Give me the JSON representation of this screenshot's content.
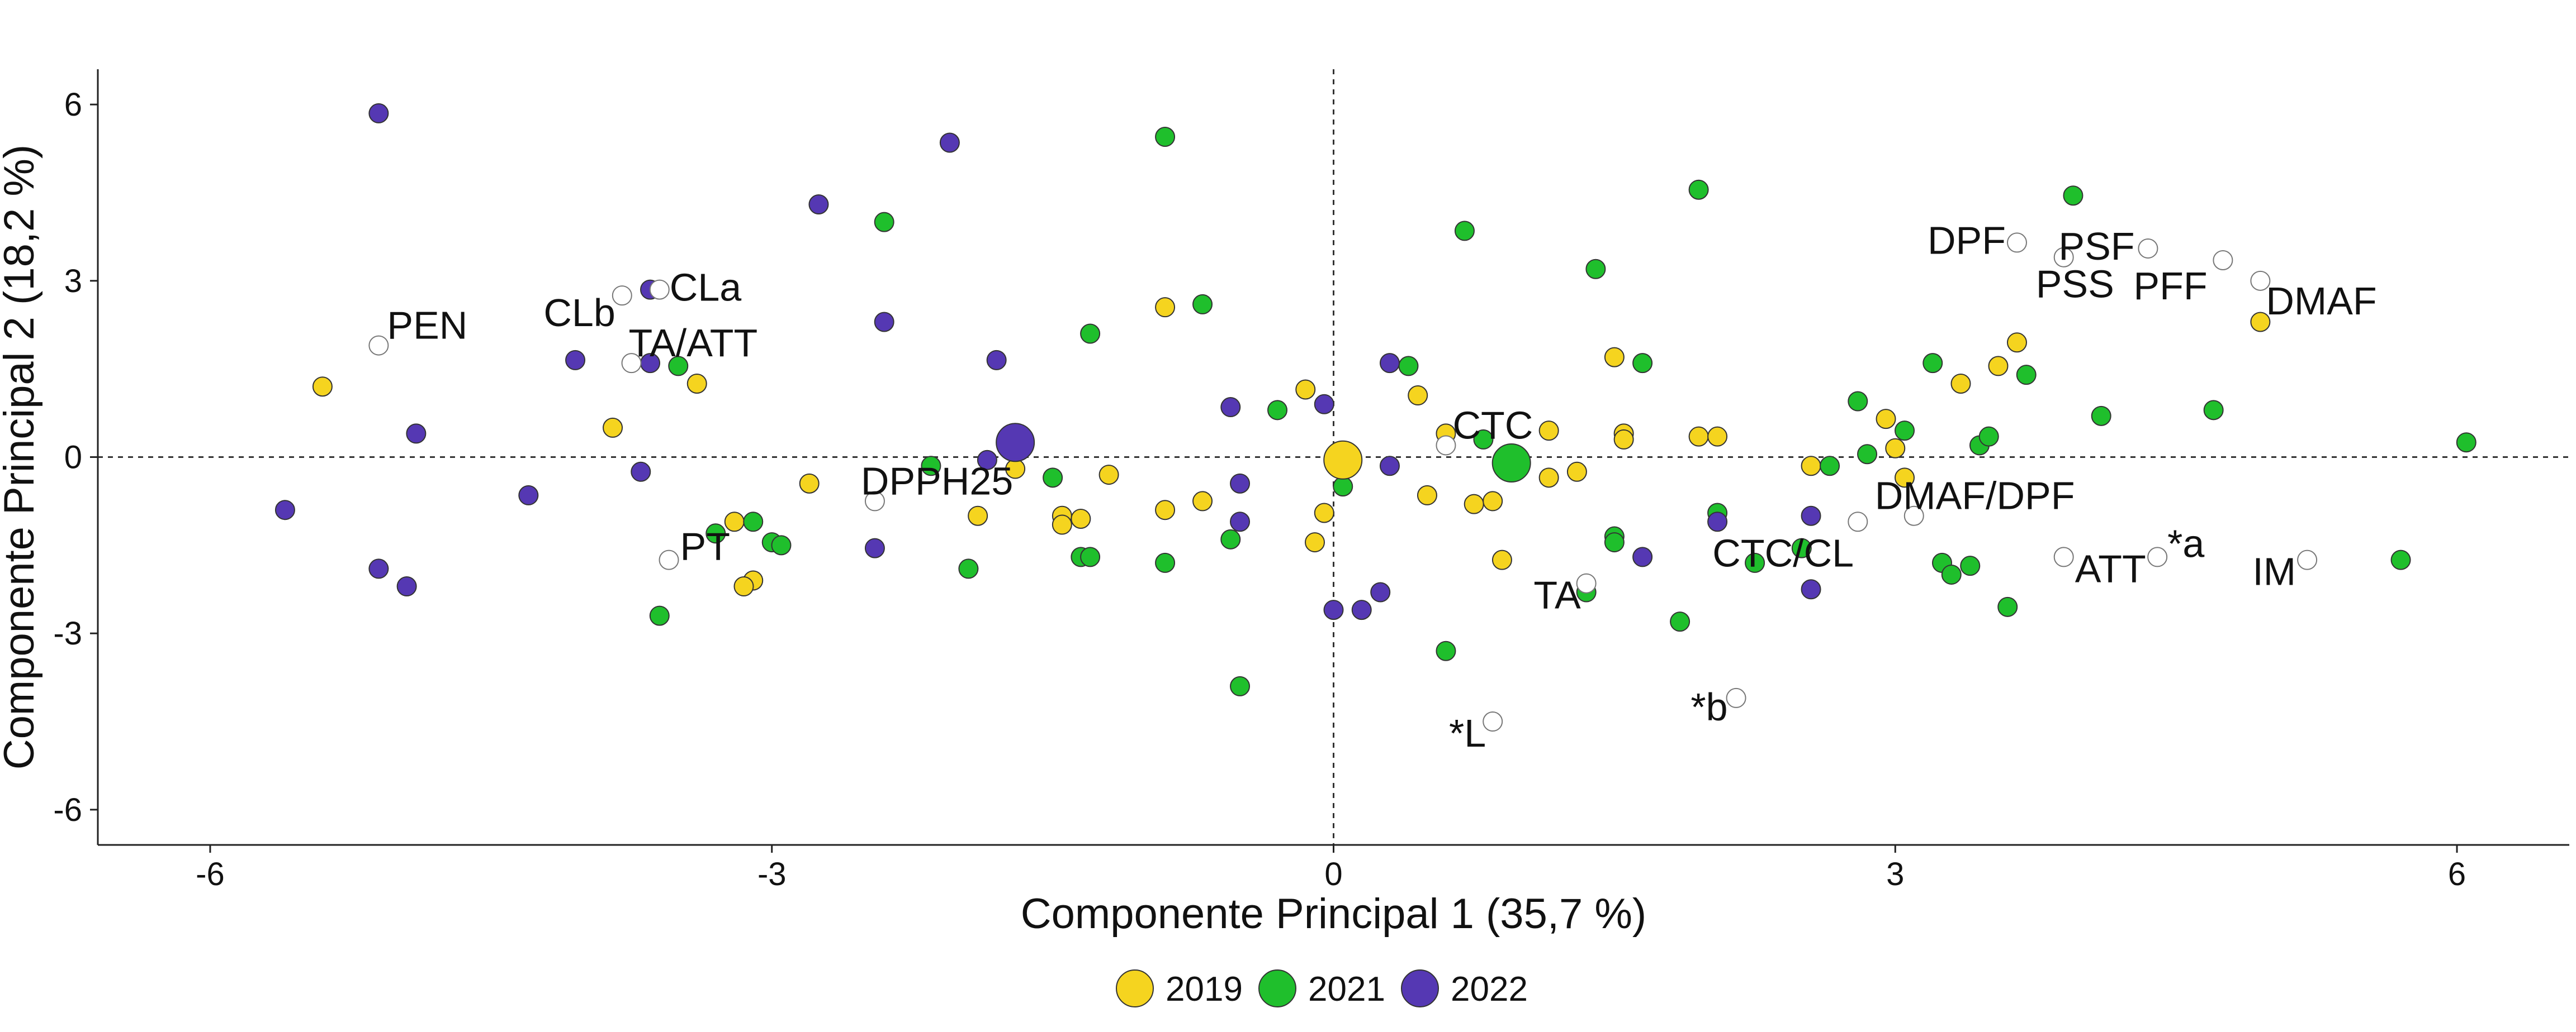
{
  "chart_data": {
    "type": "scatter",
    "title": "",
    "xlabel": "Componente Principal 1 (35,7 %)",
    "ylabel": "Componente Principal 2 (18,2 %)",
    "xlim": [
      -6.6,
      6.6
    ],
    "ylim": [
      -6.6,
      6.6
    ],
    "x_ticks": [
      -6,
      -3,
      0,
      3,
      6
    ],
    "y_ticks": [
      6,
      3,
      0,
      -3,
      -6
    ],
    "x_tick_labels": [
      "-6",
      "-3",
      "0",
      "3",
      "6"
    ],
    "y_tick_labels": [
      "6",
      "3",
      "0",
      "-3",
      "-6"
    ],
    "grid": false,
    "reference_lines": {
      "x": 0,
      "y": 0,
      "style": "dashed"
    },
    "legend_position": "bottom",
    "legend": [
      {
        "label": "2019",
        "color": "#f5d41f"
      },
      {
        "label": "2021",
        "color": "#1fbf2c"
      },
      {
        "label": "2022",
        "color": "#5538b3"
      }
    ],
    "series": [
      {
        "name": "2019",
        "color": "#f5d41f",
        "points": [
          [
            -5.4,
            1.2
          ],
          [
            -3.85,
            0.5
          ],
          [
            -3.4,
            1.25
          ],
          [
            -2.8,
            -0.45
          ],
          [
            -3.2,
            -1.1
          ],
          [
            -3.1,
            -2.1
          ],
          [
            -3.15,
            -2.2
          ],
          [
            -1.9,
            -1.0
          ],
          [
            -1.7,
            -0.2
          ],
          [
            -1.45,
            -1.0
          ],
          [
            -1.45,
            -1.15
          ],
          [
            -1.35,
            -1.05
          ],
          [
            -1.2,
            -0.3
          ],
          [
            -0.9,
            -0.9
          ],
          [
            -0.7,
            -0.75
          ],
          [
            -0.9,
            2.55
          ],
          [
            -0.15,
            1.15
          ],
          [
            -0.05,
            -0.95
          ],
          [
            -0.1,
            -1.45
          ],
          [
            0.45,
            1.05
          ],
          [
            0.6,
            0.4
          ],
          [
            0.5,
            -0.65
          ],
          [
            0.75,
            -0.8
          ],
          [
            0.85,
            -0.75
          ],
          [
            0.9,
            -1.75
          ],
          [
            1.15,
            0.45
          ],
          [
            1.15,
            -0.35
          ],
          [
            1.3,
            -0.25
          ],
          [
            1.5,
            1.7
          ],
          [
            1.55,
            0.4
          ],
          [
            1.55,
            0.3
          ],
          [
            1.95,
            0.35
          ],
          [
            2.05,
            0.35
          ],
          [
            2.55,
            -0.15
          ],
          [
            2.95,
            0.65
          ],
          [
            3.0,
            0.15
          ],
          [
            3.05,
            -0.35
          ],
          [
            3.35,
            1.25
          ],
          [
            3.55,
            1.55
          ],
          [
            3.65,
            1.95
          ],
          [
            4.95,
            2.3
          ]
        ],
        "centroid": [
          0.05,
          -0.05
        ]
      },
      {
        "name": "2021",
        "color": "#1fbf2c",
        "points": [
          [
            -3.5,
            1.55
          ],
          [
            -3.3,
            -1.3
          ],
          [
            -3.1,
            -1.1
          ],
          [
            -3.0,
            -1.45
          ],
          [
            -2.95,
            -1.5
          ],
          [
            -3.6,
            -2.7
          ],
          [
            -2.4,
            4.0
          ],
          [
            -2.15,
            -0.15
          ],
          [
            -1.95,
            -1.9
          ],
          [
            -1.5,
            -0.35
          ],
          [
            -1.35,
            -1.7
          ],
          [
            -1.3,
            -1.7
          ],
          [
            -1.3,
            2.1
          ],
          [
            -0.9,
            5.45
          ],
          [
            -0.9,
            -1.8
          ],
          [
            -0.7,
            2.6
          ],
          [
            -0.3,
            0.8
          ],
          [
            -0.55,
            -1.4
          ],
          [
            -0.5,
            -3.9
          ],
          [
            0.05,
            -0.5
          ],
          [
            0.4,
            1.55
          ],
          [
            0.6,
            -3.3
          ],
          [
            0.7,
            3.85
          ],
          [
            0.8,
            0.3
          ],
          [
            1.4,
            3.2
          ],
          [
            1.5,
            -1.35
          ],
          [
            1.5,
            -1.45
          ],
          [
            1.65,
            1.6
          ],
          [
            1.35,
            -2.3
          ],
          [
            1.85,
            -2.8
          ],
          [
            1.95,
            4.55
          ],
          [
            2.05,
            -0.95
          ],
          [
            2.25,
            -1.8
          ],
          [
            2.5,
            -1.55
          ],
          [
            2.65,
            -0.15
          ],
          [
            2.8,
            0.95
          ],
          [
            2.85,
            0.05
          ],
          [
            3.05,
            0.45
          ],
          [
            3.2,
            1.6
          ],
          [
            3.25,
            -1.8
          ],
          [
            3.3,
            -2.0
          ],
          [
            3.4,
            -1.85
          ],
          [
            3.45,
            0.2
          ],
          [
            3.5,
            0.35
          ],
          [
            3.6,
            -2.55
          ],
          [
            3.7,
            1.4
          ],
          [
            3.95,
            4.45
          ],
          [
            4.1,
            0.7
          ],
          [
            4.7,
            0.8
          ],
          [
            5.7,
            -1.75
          ],
          [
            6.05,
            0.25
          ]
        ],
        "centroid": [
          0.95,
          -0.1
        ]
      },
      {
        "name": "2022",
        "color": "#5538b3",
        "points": [
          [
            -5.6,
            -0.9
          ],
          [
            -5.1,
            5.85
          ],
          [
            -4.9,
            0.4
          ],
          [
            -4.95,
            -2.2
          ],
          [
            -5.1,
            -1.9
          ],
          [
            -4.3,
            -0.65
          ],
          [
            -4.05,
            1.65
          ],
          [
            -3.65,
            2.85
          ],
          [
            -3.65,
            1.6
          ],
          [
            -3.7,
            -0.25
          ],
          [
            -2.75,
            4.3
          ],
          [
            -2.4,
            2.3
          ],
          [
            -2.45,
            -1.55
          ],
          [
            -2.05,
            5.35
          ],
          [
            -1.8,
            1.65
          ],
          [
            -1.85,
            -0.05
          ],
          [
            -0.55,
            0.85
          ],
          [
            -0.5,
            -0.45
          ],
          [
            -0.5,
            -1.1
          ],
          [
            -0.05,
            0.9
          ],
          [
            0.3,
            1.6
          ],
          [
            0.3,
            -0.15
          ],
          [
            0.0,
            -2.6
          ],
          [
            0.15,
            -2.6
          ],
          [
            0.25,
            -2.3
          ],
          [
            2.05,
            -1.1
          ],
          [
            2.55,
            -1.0
          ],
          [
            2.55,
            -2.25
          ],
          [
            1.65,
            -1.7
          ]
        ],
        "centroid": [
          -1.7,
          0.25
        ]
      }
    ],
    "variables": [
      {
        "label": "PEN",
        "x": -5.1,
        "y": 1.9
      },
      {
        "label": "CLb",
        "x": -3.8,
        "y": 2.75
      },
      {
        "label": "CLa",
        "x": -3.6,
        "y": 2.85
      },
      {
        "label": "TA/ATT",
        "x": -3.75,
        "y": 1.6
      },
      {
        "label": "PT",
        "x": -3.55,
        "y": -1.75
      },
      {
        "label": "DPPH25",
        "x": -2.45,
        "y": -0.75
      },
      {
        "label": "CTC",
        "x": 0.6,
        "y": 0.2
      },
      {
        "label": "TA",
        "x": 1.35,
        "y": -2.15
      },
      {
        "label": "*L",
        "x": 0.85,
        "y": -4.5
      },
      {
        "label": "*b",
        "x": 2.15,
        "y": -4.1
      },
      {
        "label": "CTC/CL",
        "x": 2.8,
        "y": -1.1
      },
      {
        "label": "DMAF/DPF",
        "x": 3.1,
        "y": -1.0
      },
      {
        "label": "ATT",
        "x": 3.9,
        "y": -1.7
      },
      {
        "label": "*a",
        "x": 4.4,
        "y": -1.7
      },
      {
        "label": "IM",
        "x": 5.2,
        "y": -1.75
      },
      {
        "label": "DPF",
        "x": 3.65,
        "y": 3.65
      },
      {
        "label": "PSF",
        "x": 4.35,
        "y": 3.55
      },
      {
        "label": "PSS",
        "x": 3.9,
        "y": 3.4
      },
      {
        "label": "PFF",
        "x": 4.75,
        "y": 3.35
      },
      {
        "label": "DMAF",
        "x": 4.95,
        "y": 3.0
      }
    ]
  }
}
